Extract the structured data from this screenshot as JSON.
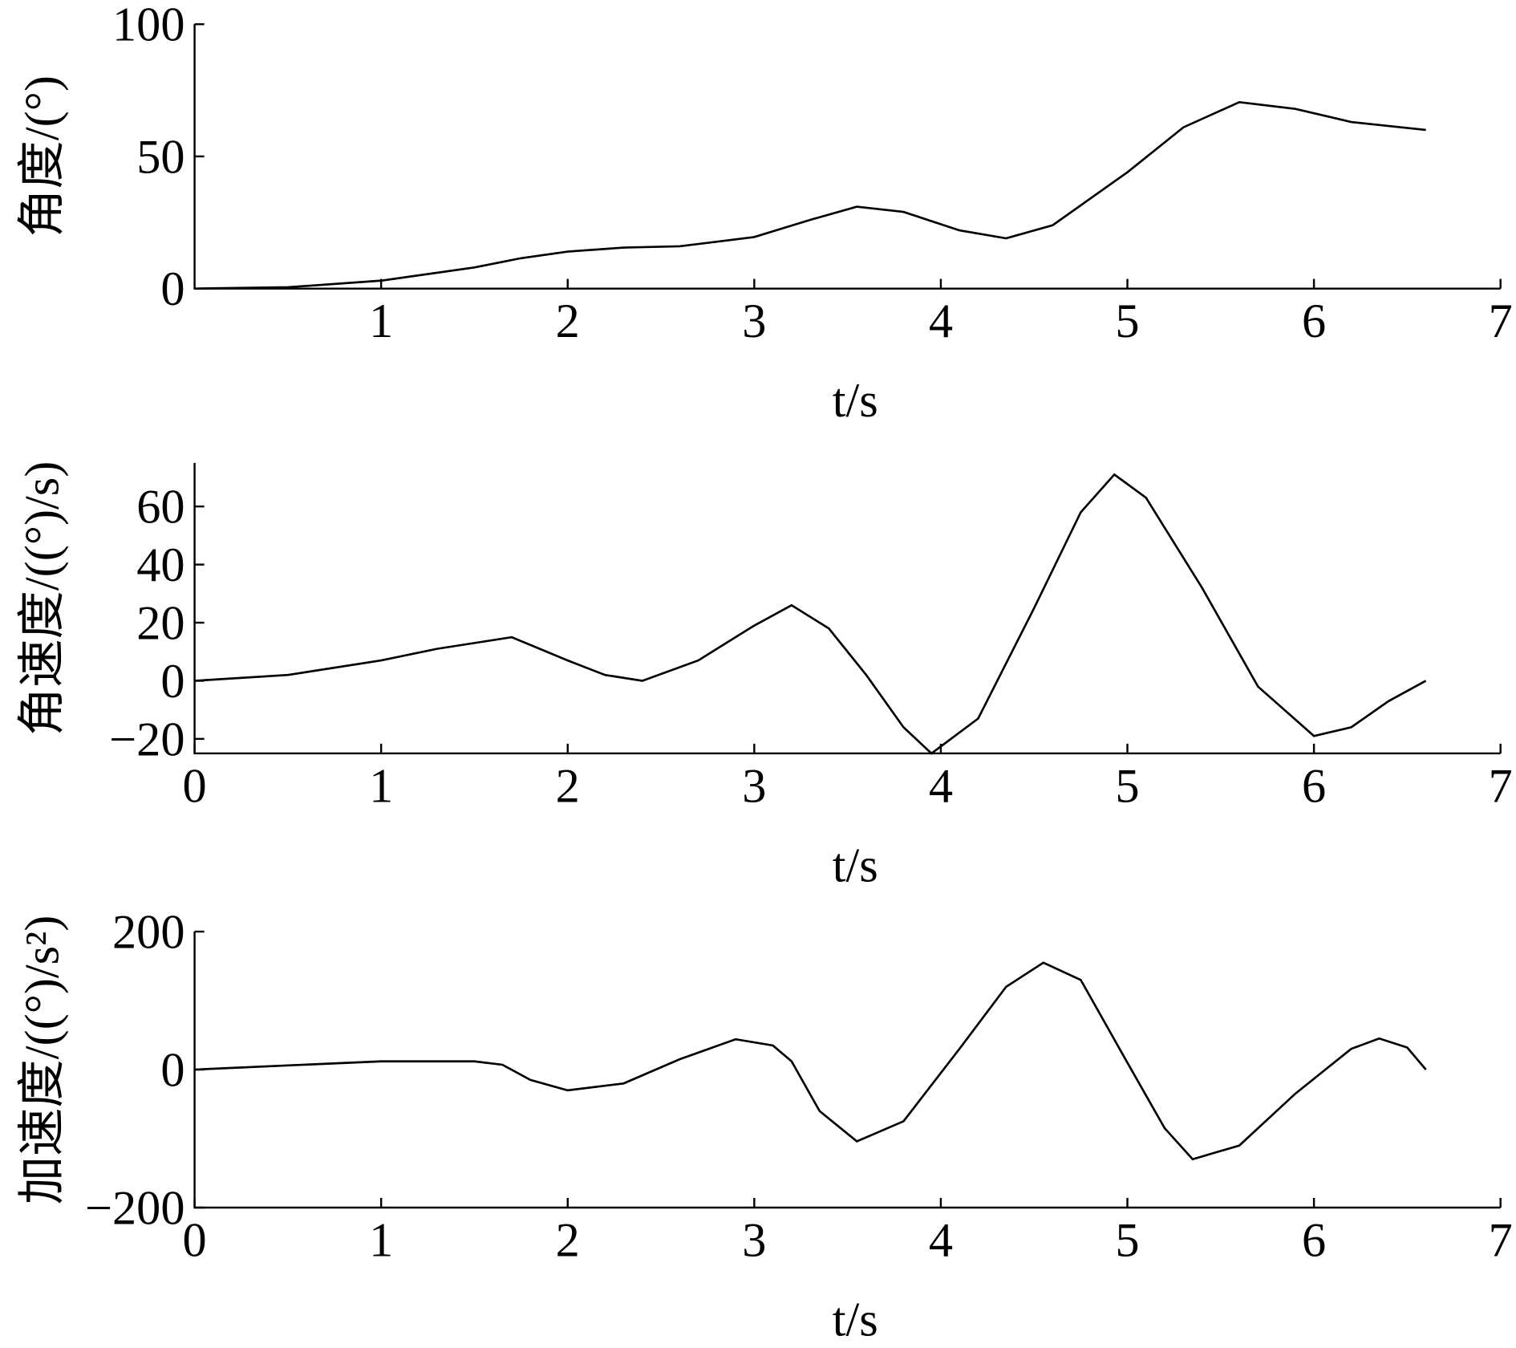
{
  "chart_data": [
    {
      "type": "line",
      "y_label": "角度/(°)",
      "x_label": "t/s",
      "x": [
        0,
        0.5,
        1,
        1.5,
        1.75,
        2,
        2.3,
        2.6,
        3,
        3.3,
        3.55,
        3.8,
        4.1,
        4.35,
        4.6,
        5,
        5.3,
        5.6,
        5.9,
        6.2,
        6.6
      ],
      "values": [
        0,
        0.5,
        3,
        8,
        11.5,
        14,
        15.5,
        16,
        19.5,
        26,
        31,
        29,
        22,
        19,
        24,
        44,
        61,
        70.5,
        68,
        63,
        60
      ],
      "color": "#000000",
      "xlim": [
        0,
        7
      ],
      "xticks": [
        1,
        2,
        3,
        4,
        5,
        6,
        7
      ],
      "ylim": [
        0,
        100
      ],
      "yticks": [
        0,
        50,
        100
      ]
    },
    {
      "type": "line",
      "y_label": "角速度/((°)/s)",
      "x_label": "t/s",
      "x": [
        0,
        0.5,
        1,
        1.3,
        1.7,
        2,
        2.2,
        2.4,
        2.7,
        3,
        3.2,
        3.4,
        3.6,
        3.8,
        3.95,
        4.2,
        4.5,
        4.75,
        4.93,
        5.1,
        5.4,
        5.7,
        6,
        6.2,
        6.4,
        6.6
      ],
      "values": [
        0,
        2,
        7,
        11,
        15,
        7,
        2,
        0,
        7,
        19,
        26,
        18,
        2,
        -16,
        -25,
        -13,
        25,
        58,
        71,
        63,
        32,
        -2,
        -19,
        -16,
        -7,
        0
      ],
      "color": "#000000",
      "xlim": [
        0,
        7
      ],
      "xticks": [
        0,
        1,
        2,
        3,
        4,
        5,
        6,
        7
      ],
      "ylim": [
        -25,
        75
      ],
      "yticks": [
        {
          "value": -20,
          "label": "−20"
        },
        0,
        20,
        40,
        60
      ]
    },
    {
      "type": "line",
      "y_label": "加速度/((°)/s²)",
      "x_label": "t/s",
      "x": [
        0,
        0.5,
        1,
        1.5,
        1.65,
        1.8,
        2,
        2.3,
        2.6,
        2.9,
        3.1,
        3.2,
        3.35,
        3.55,
        3.8,
        4.1,
        4.35,
        4.55,
        4.75,
        5,
        5.2,
        5.35,
        5.6,
        5.9,
        6.2,
        6.35,
        6.5,
        6.6
      ],
      "values": [
        0,
        6,
        12,
        12,
        7,
        -15,
        -30,
        -20,
        15,
        44,
        35,
        12,
        -60,
        -104,
        -75,
        30,
        120,
        155,
        130,
        10,
        -85,
        -130,
        -110,
        -35,
        30,
        45,
        32,
        0
      ],
      "color": "#000000",
      "xlim": [
        0,
        7
      ],
      "xticks": [
        0,
        1,
        2,
        3,
        4,
        5,
        6,
        7
      ],
      "ylim": [
        -200,
        200
      ],
      "yticks": [
        {
          "value": -200,
          "label": "−200"
        },
        0,
        200
      ]
    }
  ]
}
